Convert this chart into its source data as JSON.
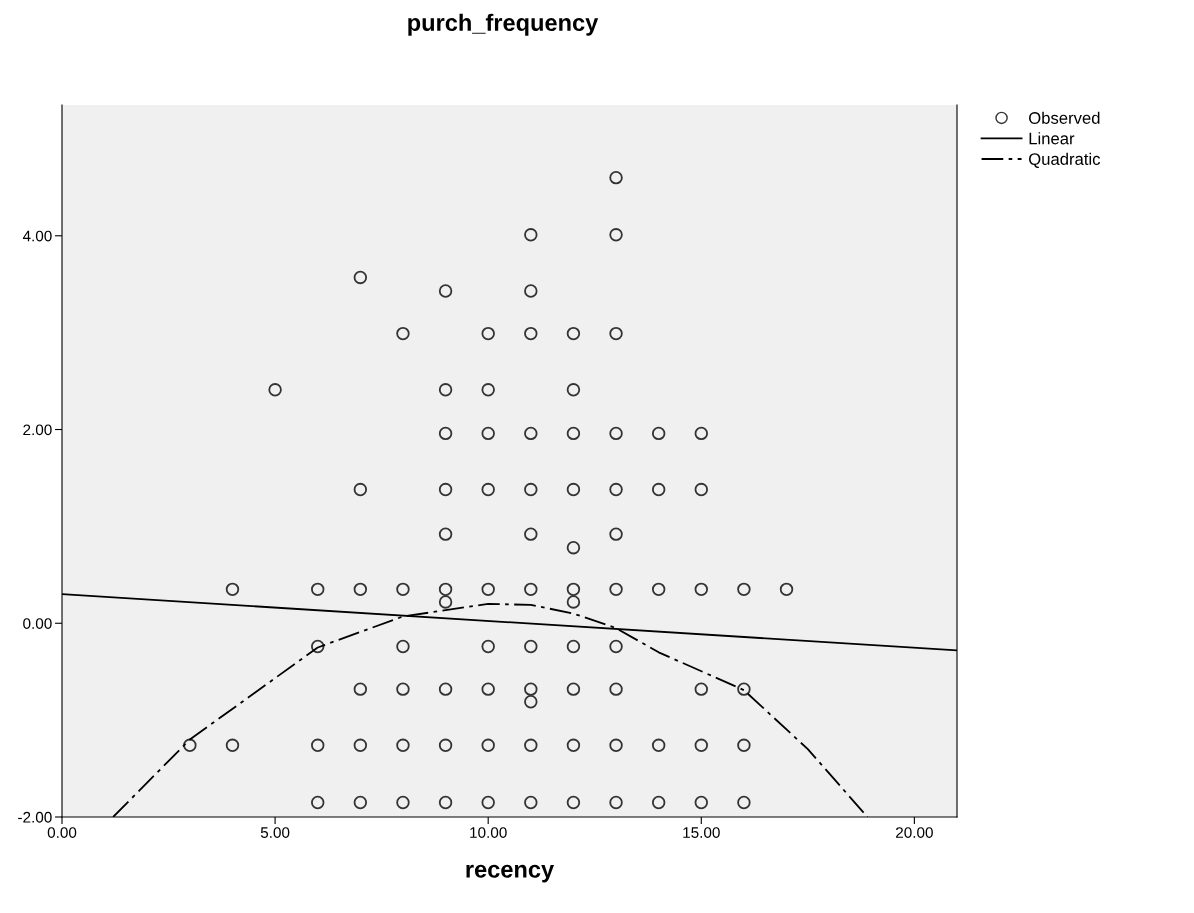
{
  "chart_data": {
    "type": "scatter",
    "title": "purch_frequency",
    "xlabel": "recency",
    "xlim": [
      0,
      21
    ],
    "ylim": [
      -2,
      5.35
    ],
    "xticks": [
      {
        "value": 0,
        "label": "0.00"
      },
      {
        "value": 5,
        "label": "5.00"
      },
      {
        "value": 10,
        "label": "10.00"
      },
      {
        "value": 15,
        "label": "15.00"
      },
      {
        "value": 20,
        "label": "20.00"
      }
    ],
    "yticks": [
      {
        "value": -2,
        "label": "-2.00"
      },
      {
        "value": 0,
        "label": "0.00"
      },
      {
        "value": 2,
        "label": "2.00"
      },
      {
        "value": 4,
        "label": "4.00"
      }
    ],
    "grid": false,
    "legend": "top right",
    "series": [
      {
        "name": "Observed",
        "color": "#333333",
        "marker": "circle",
        "x": [
          13,
          11,
          13,
          7,
          9,
          11,
          8,
          10,
          11,
          12,
          13,
          5,
          9,
          10,
          12,
          9,
          10,
          11,
          12,
          13,
          14,
          15,
          7,
          9,
          10,
          11,
          12,
          13,
          14,
          15,
          9,
          11,
          13,
          12,
          4,
          6,
          7,
          8,
          9,
          10,
          11,
          12,
          13,
          14,
          15,
          16,
          17,
          9,
          12,
          6,
          8,
          10,
          11,
          12,
          13,
          7,
          8,
          9,
          10,
          11,
          12,
          13,
          15,
          16,
          11,
          3,
          4,
          6,
          7,
          8,
          9,
          10,
          11,
          12,
          13,
          14,
          15,
          16,
          6,
          7,
          8,
          9,
          10,
          11,
          12,
          13,
          14,
          15,
          16
        ],
        "values": [
          4.6,
          4.01,
          4.01,
          3.57,
          3.43,
          3.43,
          2.99,
          2.99,
          2.99,
          2.99,
          2.99,
          2.41,
          2.41,
          2.41,
          2.41,
          1.96,
          1.96,
          1.96,
          1.96,
          1.96,
          1.96,
          1.96,
          1.38,
          1.38,
          1.38,
          1.38,
          1.38,
          1.38,
          1.38,
          1.38,
          0.92,
          0.92,
          0.92,
          0.78,
          0.35,
          0.35,
          0.35,
          0.35,
          0.35,
          0.35,
          0.35,
          0.35,
          0.35,
          0.35,
          0.35,
          0.35,
          0.35,
          0.22,
          0.22,
          -0.24,
          -0.24,
          -0.24,
          -0.24,
          -0.24,
          -0.24,
          -0.68,
          -0.68,
          -0.68,
          -0.68,
          -0.68,
          -0.68,
          -0.68,
          -0.68,
          -0.68,
          -0.81,
          -1.26,
          -1.26,
          -1.26,
          -1.26,
          -1.26,
          -1.26,
          -1.26,
          -1.26,
          -1.26,
          -1.26,
          -1.26,
          -1.26,
          -1.26,
          -1.85,
          -1.85,
          -1.85,
          -1.85,
          -1.85,
          -1.85,
          -1.85,
          -1.85,
          -1.85,
          -1.85,
          -1.85
        ]
      },
      {
        "name": "Linear",
        "type": "line",
        "color": "#000000",
        "line_style": "solid",
        "x": [
          0,
          21
        ],
        "values": [
          0.3,
          -0.28
        ]
      },
      {
        "name": "Quadratic",
        "type": "line",
        "color": "#000000",
        "line_style": "dashdot",
        "x": [
          1.2,
          3,
          6,
          8,
          10,
          11,
          12,
          13,
          14,
          16,
          17.5,
          18.9
        ],
        "values": [
          -2,
          -1.2,
          -0.25,
          0.07,
          0.2,
          0.19,
          0.1,
          -0.05,
          -0.3,
          -0.69,
          -1.3,
          -2
        ]
      }
    ]
  }
}
